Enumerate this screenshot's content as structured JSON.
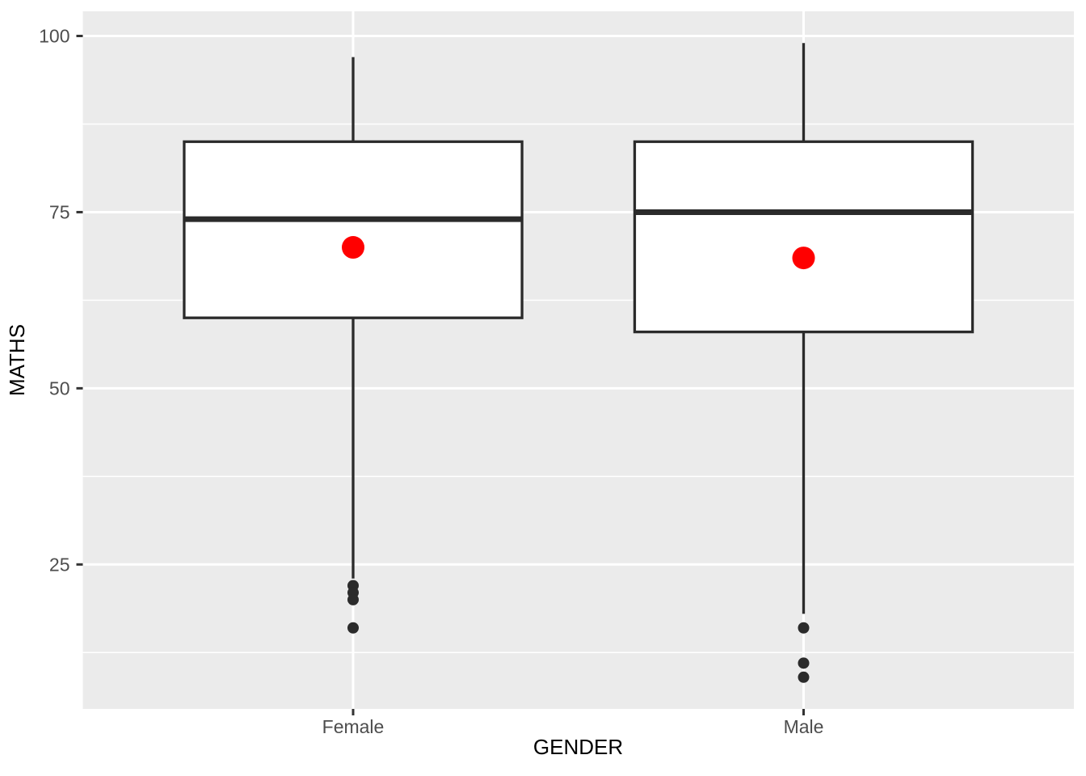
{
  "figure": {
    "background": "#FFFFFF"
  },
  "chart_data": {
    "type": "boxplot",
    "title": "",
    "xlabel": "GENDER",
    "ylabel": "MATHS",
    "categories": [
      "Female",
      "Male"
    ],
    "y_ticks": [
      25,
      50,
      75,
      100
    ],
    "y_minor_gridlines": [
      12.5,
      37.5,
      62.5,
      87.5
    ],
    "ylim": [
      4.5,
      103.5
    ],
    "grid": true,
    "legend": "none",
    "series": [
      {
        "category": "Female",
        "whisker_low": 23,
        "q1": 60,
        "median": 74,
        "q3": 85,
        "whisker_high": 97,
        "outliers": [
          22,
          21,
          20,
          16
        ],
        "mean": 70
      },
      {
        "category": "Male",
        "whisker_low": 18,
        "q1": 58,
        "median": 75,
        "q3": 85,
        "whisker_high": 99,
        "outliers": [
          16,
          11,
          9
        ],
        "mean": 68.5
      }
    ],
    "colors": {
      "panel_background": "#EBEBEB",
      "gridline": "#FFFFFF",
      "box_fill": "#FFFFFF",
      "box_stroke": "#2B2B2B",
      "outlier_point": "#2B2B2B",
      "mean_point": "#FF0000",
      "tick_label": "#4D4D4D",
      "axis_title": "#000000",
      "tick_mark": "#333333"
    }
  }
}
